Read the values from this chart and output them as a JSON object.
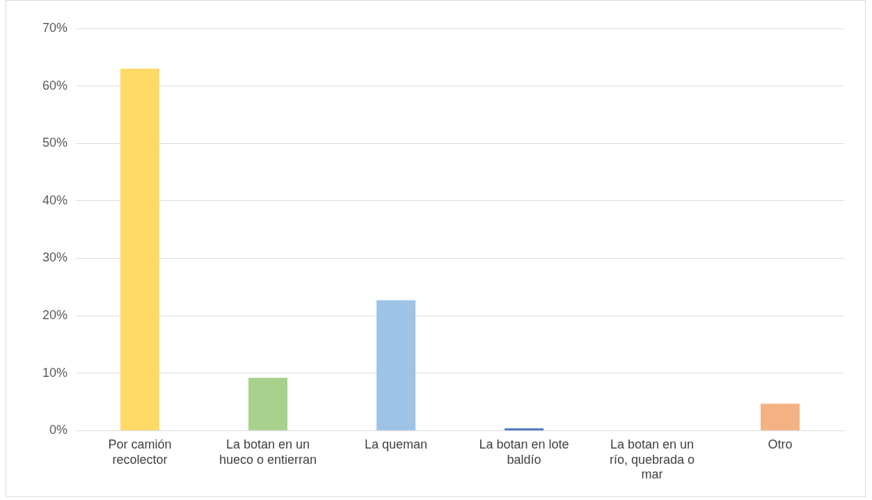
{
  "chart_data": {
    "type": "bar",
    "categories": [
      "Por camión recolector",
      "La botan en un hueco o entierran",
      "La queman",
      "La botan en lote baldío",
      "La botan en un río, quebrada o mar",
      "Otro"
    ],
    "values": [
      63,
      9.2,
      22.7,
      0.4,
      0,
      4.7
    ],
    "colors": [
      "#ffd966",
      "#a9d18e",
      "#9dc3e6",
      "#4472c4",
      "#a5a5a5",
      "#f4b183"
    ],
    "ylim": [
      0,
      70
    ],
    "yticks": [
      {
        "value": 0,
        "label": "0%"
      },
      {
        "value": 10,
        "label": "10%"
      },
      {
        "value": 20,
        "label": "20%"
      },
      {
        "value": 30,
        "label": "30%"
      },
      {
        "value": 40,
        "label": "40%"
      },
      {
        "value": 50,
        "label": "50%"
      },
      {
        "value": 60,
        "label": "60%"
      },
      {
        "value": 70,
        "label": "70%"
      }
    ],
    "grid": "y"
  }
}
